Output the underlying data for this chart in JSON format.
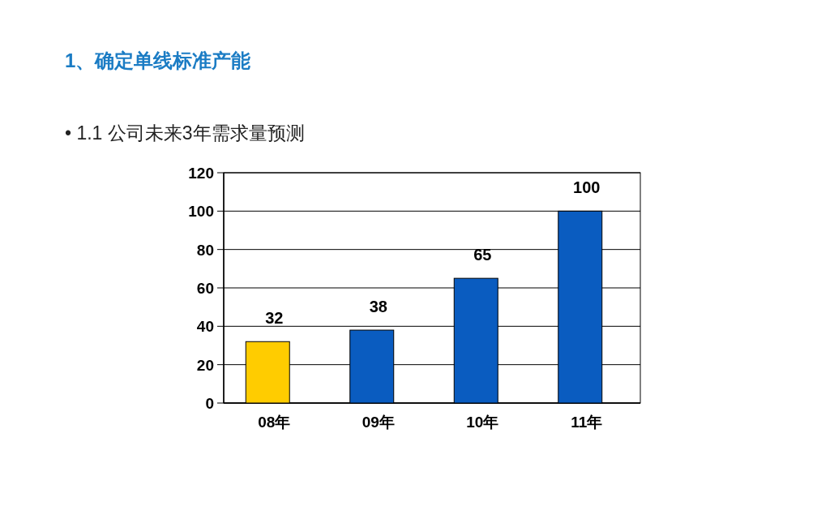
{
  "chart_data": {
    "type": "bar",
    "title": "1、确定单线标准产能",
    "subtitle": "• 1.1 公司未来3年需求量预测",
    "categories": [
      "08年",
      "09年",
      "10年",
      "11年"
    ],
    "values": [
      32,
      38,
      65,
      100
    ],
    "colors": [
      "#ffcc00",
      "#0a5cc0",
      "#0a5cc0",
      "#0a5cc0"
    ],
    "ylim": [
      0,
      120
    ],
    "yticks": [
      0,
      20,
      40,
      60,
      80,
      100,
      120
    ],
    "grid": "y",
    "data_labels": true
  }
}
